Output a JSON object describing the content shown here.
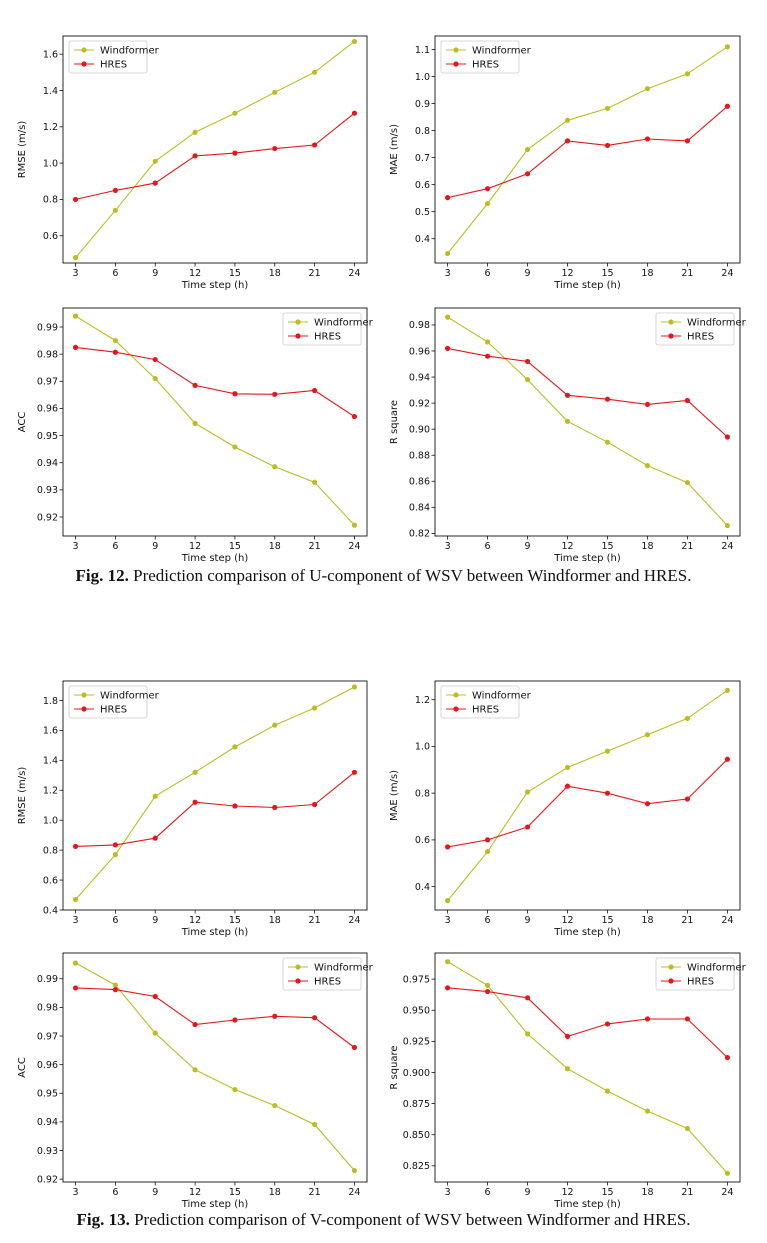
{
  "colors": {
    "windformer": "#bcbd22",
    "hres": "#e8161b"
  },
  "figures": [
    {
      "label": "Fig. 12.",
      "caption": "Prediction comparison of U-component of WSV between Windformer and HRES."
    },
    {
      "label": "Fig. 13.",
      "caption": "Prediction comparison of V-component of WSV between Windformer and HRES."
    }
  ],
  "chart_data": [
    {
      "type": "line",
      "xlabel": "Time step (h)",
      "ylabel": "RMSE (m/s)",
      "legend": "top-left",
      "x": [
        3,
        6,
        9,
        12,
        15,
        18,
        21,
        24
      ],
      "ylim": [
        0.45,
        1.7
      ],
      "yticks": [
        0.6,
        0.8,
        1.0,
        1.2,
        1.4,
        1.6
      ],
      "ytick_labels": [
        "0.6",
        "0.8",
        "1.0",
        "1.2",
        "1.4",
        "1.6"
      ],
      "series": [
        {
          "name": "Windformer",
          "values": [
            0.48,
            0.74,
            1.01,
            1.17,
            1.275,
            1.39,
            1.5,
            1.67
          ]
        },
        {
          "name": "HRES",
          "values": [
            0.8,
            0.85,
            0.89,
            1.04,
            1.055,
            1.08,
            1.1,
            1.275
          ]
        }
      ]
    },
    {
      "type": "line",
      "xlabel": "Time step (h)",
      "ylabel": "MAE (m/s)",
      "legend": "top-left",
      "x": [
        3,
        6,
        9,
        12,
        15,
        18,
        21,
        24
      ],
      "ylim": [
        0.31,
        1.15
      ],
      "yticks": [
        0.4,
        0.5,
        0.6,
        0.7,
        0.8,
        0.9,
        1.0,
        1.1
      ],
      "ytick_labels": [
        "0.4",
        "0.5",
        "0.6",
        "0.7",
        "0.8",
        "0.9",
        "1.0",
        "1.1"
      ],
      "series": [
        {
          "name": "Windformer",
          "values": [
            0.345,
            0.53,
            0.73,
            0.838,
            0.882,
            0.955,
            1.01,
            1.11
          ]
        },
        {
          "name": "HRES",
          "values": [
            0.552,
            0.585,
            0.64,
            0.762,
            0.745,
            0.769,
            0.762,
            0.89
          ]
        }
      ]
    },
    {
      "type": "line",
      "xlabel": "Time step (h)",
      "ylabel": "ACC",
      "legend": "top-right",
      "x": [
        3,
        6,
        9,
        12,
        15,
        18,
        21,
        24
      ],
      "ylim": [
        0.913,
        0.997
      ],
      "yticks": [
        0.92,
        0.93,
        0.94,
        0.95,
        0.96,
        0.97,
        0.98,
        0.99
      ],
      "ytick_labels": [
        "0.92",
        "0.93",
        "0.94",
        "0.95",
        "0.96",
        "0.97",
        "0.98",
        "0.99"
      ],
      "series": [
        {
          "name": "Windformer",
          "values": [
            0.994,
            0.985,
            0.971,
            0.9545,
            0.9458,
            0.9385,
            0.9328,
            0.917
          ]
        },
        {
          "name": "HRES",
          "values": [
            0.9825,
            0.9807,
            0.978,
            0.9685,
            0.9654,
            0.9652,
            0.9666,
            0.957
          ]
        }
      ]
    },
    {
      "type": "line",
      "xlabel": "Time step (h)",
      "ylabel": "R square",
      "legend": "top-right",
      "x": [
        3,
        6,
        9,
        12,
        15,
        18,
        21,
        24
      ],
      "ylim": [
        0.818,
        0.993
      ],
      "yticks": [
        0.82,
        0.84,
        0.86,
        0.88,
        0.9,
        0.92,
        0.94,
        0.96,
        0.98
      ],
      "ytick_labels": [
        "0.82",
        "0.84",
        "0.86",
        "0.88",
        "0.90",
        "0.92",
        "0.94",
        "0.96",
        "0.98"
      ],
      "series": [
        {
          "name": "Windformer",
          "values": [
            0.986,
            0.967,
            0.938,
            0.906,
            0.89,
            0.872,
            0.859,
            0.826
          ]
        },
        {
          "name": "HRES",
          "values": [
            0.962,
            0.956,
            0.952,
            0.926,
            0.923,
            0.919,
            0.922,
            0.894
          ]
        }
      ]
    },
    {
      "type": "line",
      "xlabel": "Time step (h)",
      "ylabel": "RMSE (m/s)",
      "legend": "top-left",
      "x": [
        3,
        6,
        9,
        12,
        15,
        18,
        21,
        24
      ],
      "ylim": [
        0.4,
        1.93
      ],
      "yticks": [
        0.4,
        0.6,
        0.8,
        1.0,
        1.2,
        1.4,
        1.6,
        1.8
      ],
      "ytick_labels": [
        "0.4",
        "0.6",
        "0.8",
        "1.0",
        "1.2",
        "1.4",
        "1.6",
        "1.8"
      ],
      "series": [
        {
          "name": "Windformer",
          "values": [
            0.47,
            0.77,
            1.16,
            1.32,
            1.49,
            1.635,
            1.75,
            1.89
          ]
        },
        {
          "name": "HRES",
          "values": [
            0.825,
            0.835,
            0.88,
            1.12,
            1.095,
            1.085,
            1.105,
            1.32
          ]
        }
      ]
    },
    {
      "type": "line",
      "xlabel": "Time step (h)",
      "ylabel": "MAE (m/s)",
      "legend": "top-left",
      "x": [
        3,
        6,
        9,
        12,
        15,
        18,
        21,
        24
      ],
      "ylim": [
        0.3,
        1.28
      ],
      "yticks": [
        0.4,
        0.6,
        0.8,
        1.0,
        1.2
      ],
      "ytick_labels": [
        "0.4",
        "0.6",
        "0.8",
        "1.0",
        "1.2"
      ],
      "series": [
        {
          "name": "Windformer",
          "values": [
            0.34,
            0.55,
            0.805,
            0.91,
            0.98,
            1.05,
            1.12,
            1.24
          ]
        },
        {
          "name": "HRES",
          "values": [
            0.57,
            0.6,
            0.655,
            0.83,
            0.8,
            0.755,
            0.775,
            0.945
          ]
        }
      ]
    },
    {
      "type": "line",
      "xlabel": "Time step (h)",
      "ylabel": "ACC",
      "legend": "top-right",
      "x": [
        3,
        6,
        9,
        12,
        15,
        18,
        21,
        24
      ],
      "ylim": [
        0.919,
        0.999
      ],
      "yticks": [
        0.92,
        0.93,
        0.94,
        0.95,
        0.96,
        0.97,
        0.98,
        0.99
      ],
      "ytick_labels": [
        "0.92",
        "0.93",
        "0.94",
        "0.95",
        "0.96",
        "0.97",
        "0.98",
        "0.99"
      ],
      "series": [
        {
          "name": "Windformer",
          "values": [
            0.9955,
            0.9878,
            0.971,
            0.9582,
            0.9513,
            0.9457,
            0.9391,
            0.923
          ]
        },
        {
          "name": "HRES",
          "values": [
            0.9868,
            0.9862,
            0.9838,
            0.974,
            0.9756,
            0.9769,
            0.9764,
            0.966
          ]
        }
      ]
    },
    {
      "type": "line",
      "xlabel": "Time step (h)",
      "ylabel": "R square",
      "legend": "top-right",
      "x": [
        3,
        6,
        9,
        12,
        15,
        18,
        21,
        24
      ],
      "ylim": [
        0.812,
        0.996
      ],
      "yticks": [
        0.825,
        0.85,
        0.875,
        0.9,
        0.925,
        0.95,
        0.975
      ],
      "ytick_labels": [
        "0.825",
        "0.850",
        "0.875",
        "0.900",
        "0.925",
        "0.950",
        "0.975"
      ],
      "series": [
        {
          "name": "Windformer",
          "values": [
            0.989,
            0.97,
            0.931,
            0.903,
            0.885,
            0.869,
            0.855,
            0.819
          ]
        },
        {
          "name": "HRES",
          "values": [
            0.968,
            0.965,
            0.96,
            0.929,
            0.939,
            0.943,
            0.943,
            0.912
          ]
        }
      ]
    }
  ]
}
